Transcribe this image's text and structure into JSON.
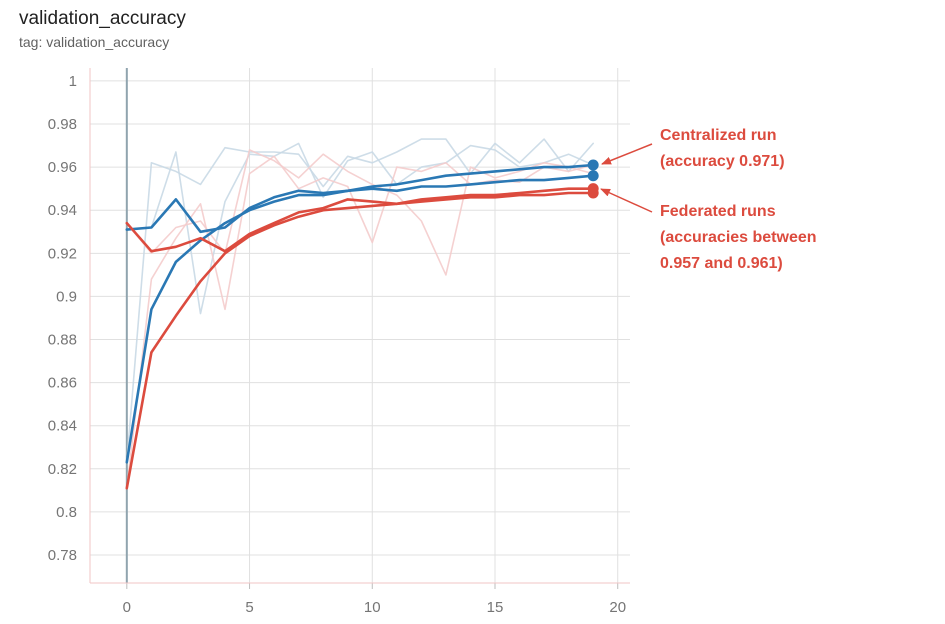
{
  "header": {
    "title": "validation_accuracy",
    "subtitle": "tag: validation_accuracy"
  },
  "colors": {
    "blue": "#2a78b4",
    "red": "#dc4b3e",
    "blue_faint": "#c9d9e6",
    "red_faint": "#f4cccc",
    "grid": "#e0e0e0",
    "axis": "#90a4ae"
  },
  "annotations": {
    "centralized": [
      "Centralized run",
      "(accuracy 0.971)"
    ],
    "federated": [
      "Federated runs",
      "(accuracies between",
      "0.957 and 0.961)"
    ]
  },
  "chart_data": {
    "type": "line",
    "title": "validation_accuracy",
    "xlabel": "",
    "ylabel": "",
    "xlim": [
      -1.5,
      20.5
    ],
    "ylim": [
      0.767,
      1.006
    ],
    "xticks": [
      0,
      5,
      10,
      15,
      20
    ],
    "yticks": [
      0.78,
      0.8,
      0.82,
      0.84,
      0.86,
      0.88,
      0.9,
      0.92,
      0.94,
      0.96,
      0.98,
      1
    ],
    "grid": true,
    "legend": "none",
    "x": [
      0,
      1,
      2,
      3,
      4,
      5,
      6,
      7,
      8,
      9,
      10,
      11,
      12,
      13,
      14,
      15,
      16,
      17,
      18,
      19
    ],
    "series": [
      {
        "color": "blue",
        "style": "smoothed",
        "values": [
          0.823,
          0.894,
          0.916,
          0.926,
          0.934,
          0.94,
          0.944,
          0.947,
          0.947,
          0.949,
          0.951,
          0.952,
          0.954,
          0.956,
          0.957,
          0.958,
          0.959,
          0.96,
          0.96,
          0.961
        ]
      },
      {
        "color": "blue",
        "style": "smoothed",
        "values": [
          0.931,
          0.932,
          0.945,
          0.93,
          0.932,
          0.941,
          0.946,
          0.949,
          0.948,
          0.949,
          0.95,
          0.949,
          0.951,
          0.951,
          0.952,
          0.953,
          0.954,
          0.954,
          0.955,
          0.956
        ]
      },
      {
        "color": "red",
        "style": "smoothed",
        "values": [
          0.811,
          0.874,
          0.891,
          0.907,
          0.92,
          0.928,
          0.933,
          0.937,
          0.94,
          0.941,
          0.942,
          0.943,
          0.944,
          0.945,
          0.946,
          0.946,
          0.947,
          0.947,
          0.948,
          0.948
        ]
      },
      {
        "color": "red",
        "style": "smoothed",
        "values": [
          0.934,
          0.921,
          0.923,
          0.927,
          0.921,
          0.929,
          0.934,
          0.939,
          0.941,
          0.945,
          0.944,
          0.943,
          0.945,
          0.946,
          0.947,
          0.947,
          0.948,
          0.949,
          0.95,
          0.95
        ]
      },
      {
        "color": "blue_faint",
        "style": "raw",
        "values": [
          0.823,
          0.962,
          0.958,
          0.952,
          0.969,
          0.967,
          0.967,
          0.966,
          0.951,
          0.965,
          0.962,
          0.967,
          0.973,
          0.973,
          0.957,
          0.971,
          0.962,
          0.973,
          0.958,
          0.971
        ]
      },
      {
        "color": "blue_faint",
        "style": "raw",
        "values": [
          0.931,
          0.932,
          0.967,
          0.892,
          0.944,
          0.966,
          0.965,
          0.971,
          0.946,
          0.963,
          0.967,
          0.952,
          0.96,
          0.962,
          0.97,
          0.968,
          0.96,
          0.962,
          0.966,
          0.961
        ]
      },
      {
        "color": "red_faint",
        "style": "raw",
        "values": [
          0.811,
          0.908,
          0.927,
          0.943,
          0.894,
          0.957,
          0.965,
          0.95,
          0.955,
          0.951,
          0.925,
          0.96,
          0.958,
          0.962,
          0.952,
          0.954,
          0.953,
          0.96,
          0.958,
          0.961
        ]
      },
      {
        "color": "red_faint",
        "style": "raw",
        "values": [
          0.934,
          0.92,
          0.932,
          0.935,
          0.92,
          0.968,
          0.963,
          0.955,
          0.966,
          0.958,
          0.952,
          0.947,
          0.935,
          0.91,
          0.96,
          0.955,
          0.958,
          0.962,
          0.96,
          0.957
        ]
      }
    ]
  }
}
